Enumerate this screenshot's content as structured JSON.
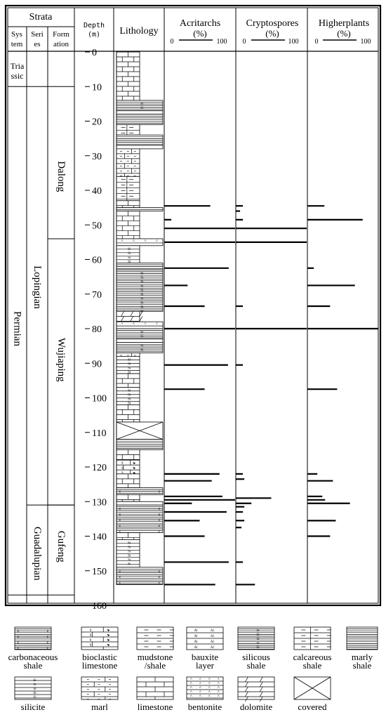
{
  "header": {
    "strata": "Strata",
    "system": [
      "Sys",
      "tem"
    ],
    "series": [
      "Seri",
      "es"
    ],
    "formation": [
      "Form",
      "ation"
    ],
    "depth": [
      "Depth",
      "(m)"
    ],
    "lithology": "Lithology"
  },
  "panels": [
    {
      "title": "Acritarchs",
      "unit": "(%)",
      "min": "0",
      "max": "100"
    },
    {
      "title": "Cryptospores",
      "unit": "(%)",
      "min": "0",
      "max": "100"
    },
    {
      "title": "Higherplants",
      "unit": "(%)",
      "min": "0",
      "max": "100"
    }
  ],
  "strata": {
    "systems": [
      {
        "label": [
          "Tria",
          "ssic"
        ],
        "from": 0,
        "to": 10
      },
      {
        "label": [
          "Permian"
        ],
        "from": 10,
        "to": 157
      }
    ],
    "series": [
      {
        "label": "Lopingian",
        "from": 10,
        "to": 131
      },
      {
        "label": "Guadalupian",
        "from": 131,
        "to": 157
      }
    ],
    "formations": [
      {
        "label": "Dalong",
        "from": 10,
        "to": 54
      },
      {
        "label": "Wujiaping",
        "from": 54,
        "to": 131
      },
      {
        "label": "Gufeng",
        "from": 131,
        "to": 157
      }
    ]
  },
  "lithology_column": [
    {
      "rock": "limestone",
      "from": 0,
      "to": 14
    },
    {
      "rock": "silicous shale",
      "from": 14,
      "to": 17
    },
    {
      "rock": "bentonite",
      "from": 17,
      "to": 18
    },
    {
      "rock": "marly shale",
      "from": 18,
      "to": 21
    },
    {
      "rock": "calcareous shale",
      "from": 21,
      "to": 24
    },
    {
      "rock": "marly shale",
      "from": 24,
      "to": 27
    },
    {
      "rock": "bentonite",
      "from": 27,
      "to": 28
    },
    {
      "rock": "marl",
      "from": 28,
      "to": 36
    },
    {
      "rock": "calcareous shale",
      "from": 36,
      "to": 43
    },
    {
      "rock": "limestone",
      "from": 43,
      "to": 45
    },
    {
      "rock": "marly shale",
      "from": 45,
      "to": 46
    },
    {
      "rock": "limestone",
      "from": 46,
      "to": 54
    },
    {
      "rock": "bentonite",
      "from": 54,
      "to": 56
    },
    {
      "rock": "silicite",
      "from": 56,
      "to": 61
    },
    {
      "rock": "marly shale",
      "from": 61,
      "to": 63
    },
    {
      "rock": "silicous shale",
      "from": 63,
      "to": 75
    },
    {
      "rock": "dolomite",
      "from": 75,
      "to": 78
    },
    {
      "rock": "bentonite",
      "from": 78,
      "to": 80
    },
    {
      "rock": "silicous shale",
      "from": 80,
      "to": 83
    },
    {
      "rock": "bentonite",
      "from": 83,
      "to": 84
    },
    {
      "rock": "silicous shale",
      "from": 84,
      "to": 87
    },
    {
      "rock": "marl",
      "from": 87,
      "to": 88
    },
    {
      "rock": "silicite",
      "from": 88,
      "to": 93
    },
    {
      "rock": "limestone",
      "from": 93,
      "to": 97
    },
    {
      "rock": "silicite",
      "from": 97,
      "to": 102
    },
    {
      "rock": "limestone",
      "from": 102,
      "to": 107
    },
    {
      "rock": "covered",
      "from": 107,
      "to": 112
    },
    {
      "rock": "marly shale",
      "from": 112,
      "to": 115
    },
    {
      "rock": "limestone",
      "from": 115,
      "to": 118
    },
    {
      "rock": "bioclastic limestone",
      "from": 118,
      "to": 122
    },
    {
      "rock": "limestone",
      "from": 122,
      "to": 126
    },
    {
      "rock": "carbonaceous shale",
      "from": 126,
      "to": 128
    },
    {
      "rock": "limestone",
      "from": 128,
      "to": 130
    },
    {
      "rock": "bentonite",
      "from": 130,
      "to": 131
    },
    {
      "rock": "carbonaceous shale",
      "from": 131,
      "to": 139
    },
    {
      "rock": "limestone",
      "from": 139,
      "to": 141
    },
    {
      "rock": "silicite",
      "from": 141,
      "to": 149
    },
    {
      "rock": "carbonaceous shale",
      "from": 149,
      "to": 154
    }
  ],
  "chart_data": {
    "type": "bar",
    "orientation": "horizontal",
    "y_label": "Depth (m)",
    "y_unit": "m",
    "ylim": [
      0,
      160
    ],
    "y_ticks": [
      0,
      10,
      20,
      30,
      40,
      50,
      60,
      70,
      80,
      90,
      100,
      110,
      120,
      130,
      140,
      150,
      160
    ],
    "xlim": [
      0,
      100
    ],
    "x_unit": "%",
    "series": [
      {
        "name": "Acritarchs",
        "depths": [
          44.5,
          48.5,
          51,
          55,
          62.5,
          67.5,
          73.5,
          80,
          90.5,
          97.5,
          122,
          124,
          128.5,
          129.5,
          130.5,
          133,
          135.5,
          140,
          147.5,
          154
        ],
        "values": [
          65,
          10,
          100,
          100,
          91,
          33,
          57,
          100,
          90,
          57,
          78,
          67,
          82,
          100,
          39,
          88,
          50,
          57,
          91,
          72
        ]
      },
      {
        "name": "Cryptospores",
        "depths": [
          44.5,
          46,
          48.5,
          51,
          55,
          73.5,
          80,
          90.5,
          122,
          123.5,
          129,
          130.5,
          131.5,
          133,
          135.5,
          137.5,
          147.5,
          154
        ],
        "values": [
          10,
          6,
          10,
          100,
          100,
          10,
          100,
          10,
          10,
          12,
          50,
          22,
          12,
          10,
          12,
          8,
          10,
          27
        ]
      },
      {
        "name": "Higherplants",
        "depths": [
          44.5,
          48.5,
          62.5,
          67.5,
          73.5,
          80,
          97.5,
          122,
          124,
          128.5,
          129.5,
          130.5,
          135.5,
          140
        ],
        "values": [
          24,
          78,
          9,
          67,
          32,
          100,
          42,
          14,
          36,
          21,
          25,
          60,
          40,
          32
        ]
      }
    ]
  },
  "legend": {
    "row1": [
      {
        "key": "carbonaceous",
        "label": [
          "carbonaceous",
          "shale"
        ]
      },
      {
        "key": "bioclastic",
        "label": [
          "bioclastic",
          "limestone"
        ]
      },
      {
        "key": "mudstone",
        "label": [
          "mudstone",
          "/shale"
        ]
      },
      {
        "key": "bauxite",
        "label": [
          "bauxite",
          "layer"
        ]
      },
      {
        "key": "silicousshale",
        "label": [
          "silicous",
          "shale"
        ]
      },
      {
        "key": "calcshale",
        "label": [
          "calcareous",
          "shale"
        ]
      },
      {
        "key": "marlyshale",
        "label": [
          "marly",
          "shale"
        ]
      }
    ],
    "row2": [
      {
        "key": "silicite",
        "label": [
          "silicite"
        ]
      },
      {
        "key": "marl",
        "label": [
          "marl"
        ]
      },
      {
        "key": "limestone",
        "label": [
          "limestone"
        ]
      },
      {
        "key": "bentonite",
        "label": [
          "bentonite"
        ]
      },
      {
        "key": "dolomite",
        "label": [
          "dolomite"
        ]
      },
      {
        "key": "covered",
        "label": [
          "covered"
        ]
      }
    ]
  },
  "colors": {
    "ink": "#000000",
    "paper": "#ffffff"
  }
}
